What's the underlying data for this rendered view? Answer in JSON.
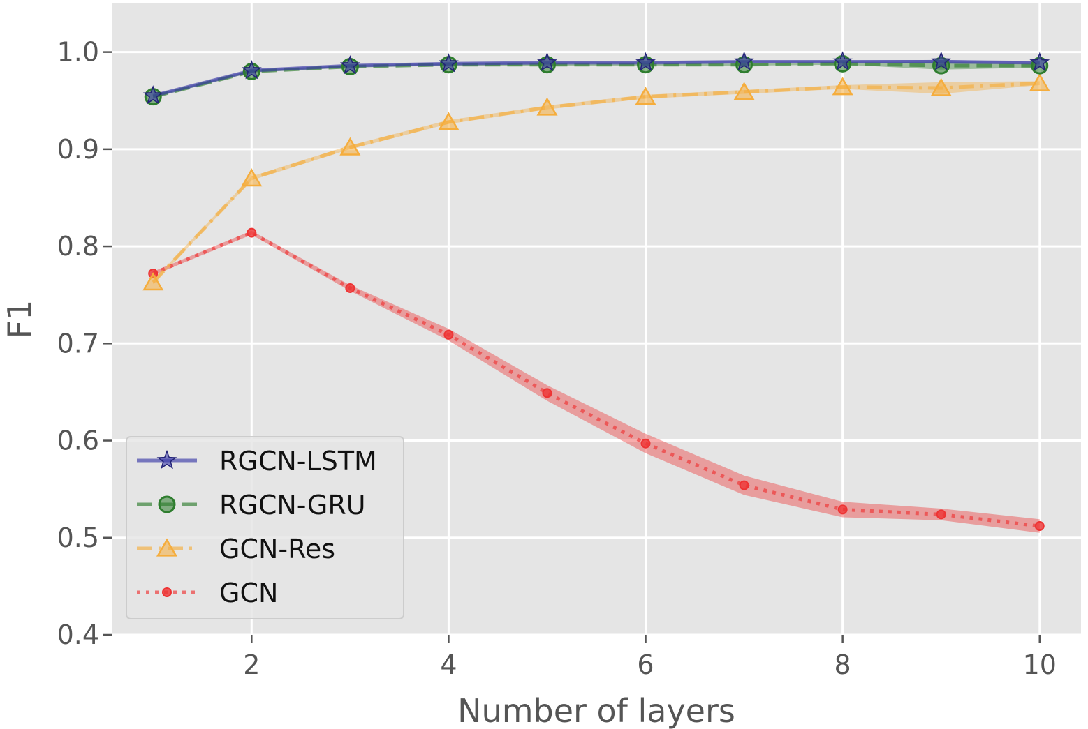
{
  "chart_data": {
    "type": "line",
    "title": "",
    "xlabel": "Number of layers",
    "ylabel": "F1",
    "xlim": [
      0.58,
      10.42
    ],
    "ylim": [
      0.4,
      1.05
    ],
    "xticks": [
      2,
      4,
      6,
      8,
      10
    ],
    "yticks": [
      0.4,
      0.5,
      0.6,
      0.7,
      0.8,
      0.9,
      1.0
    ],
    "xtick_labels": [
      "2",
      "4",
      "6",
      "8",
      "10"
    ],
    "ytick_labels": [
      "0.4",
      "0.5",
      "0.6",
      "0.7",
      "0.8",
      "0.9",
      "1.0"
    ],
    "grid": true,
    "legend_position": "lower-left",
    "x": [
      1,
      2,
      3,
      4,
      5,
      6,
      7,
      8,
      9,
      10
    ],
    "series": [
      {
        "name": "RGCN-LSTM",
        "color": "#3a3aa8",
        "line_style": "solid",
        "marker": "star",
        "values": [
          0.955,
          0.981,
          0.986,
          0.988,
          0.989,
          0.989,
          0.99,
          0.99,
          0.99,
          0.989
        ],
        "band": [
          0.001,
          0.001,
          0.001,
          0.001,
          0.001,
          0.001,
          0.001,
          0.001,
          0.002,
          0.001
        ]
      },
      {
        "name": "RGCN-GRU",
        "color": "#2e7d2e",
        "line_style": "dashed",
        "marker": "circle",
        "values": [
          0.954,
          0.98,
          0.985,
          0.987,
          0.987,
          0.987,
          0.987,
          0.988,
          0.986,
          0.986
        ],
        "band": [
          0.001,
          0.001,
          0.001,
          0.001,
          0.001,
          0.001,
          0.001,
          0.001,
          0.004,
          0.002
        ]
      },
      {
        "name": "GCN-Res",
        "color": "#f5ad3d",
        "line_style": "dashdot",
        "marker": "triangle",
        "values": [
          0.763,
          0.87,
          0.902,
          0.928,
          0.943,
          0.954,
          0.959,
          0.964,
          0.963,
          0.968
        ],
        "band": [
          0.002,
          0.002,
          0.002,
          0.002,
          0.002,
          0.002,
          0.002,
          0.002,
          0.006,
          0.002
        ]
      },
      {
        "name": "GCN",
        "color": "#ee3333",
        "line_style": "dotted",
        "marker": "small-circle",
        "values": [
          0.772,
          0.814,
          0.757,
          0.709,
          0.649,
          0.597,
          0.554,
          0.529,
          0.524,
          0.512
        ],
        "band": [
          0.002,
          0.002,
          0.003,
          0.006,
          0.008,
          0.01,
          0.01,
          0.008,
          0.006,
          0.007
        ]
      }
    ]
  }
}
